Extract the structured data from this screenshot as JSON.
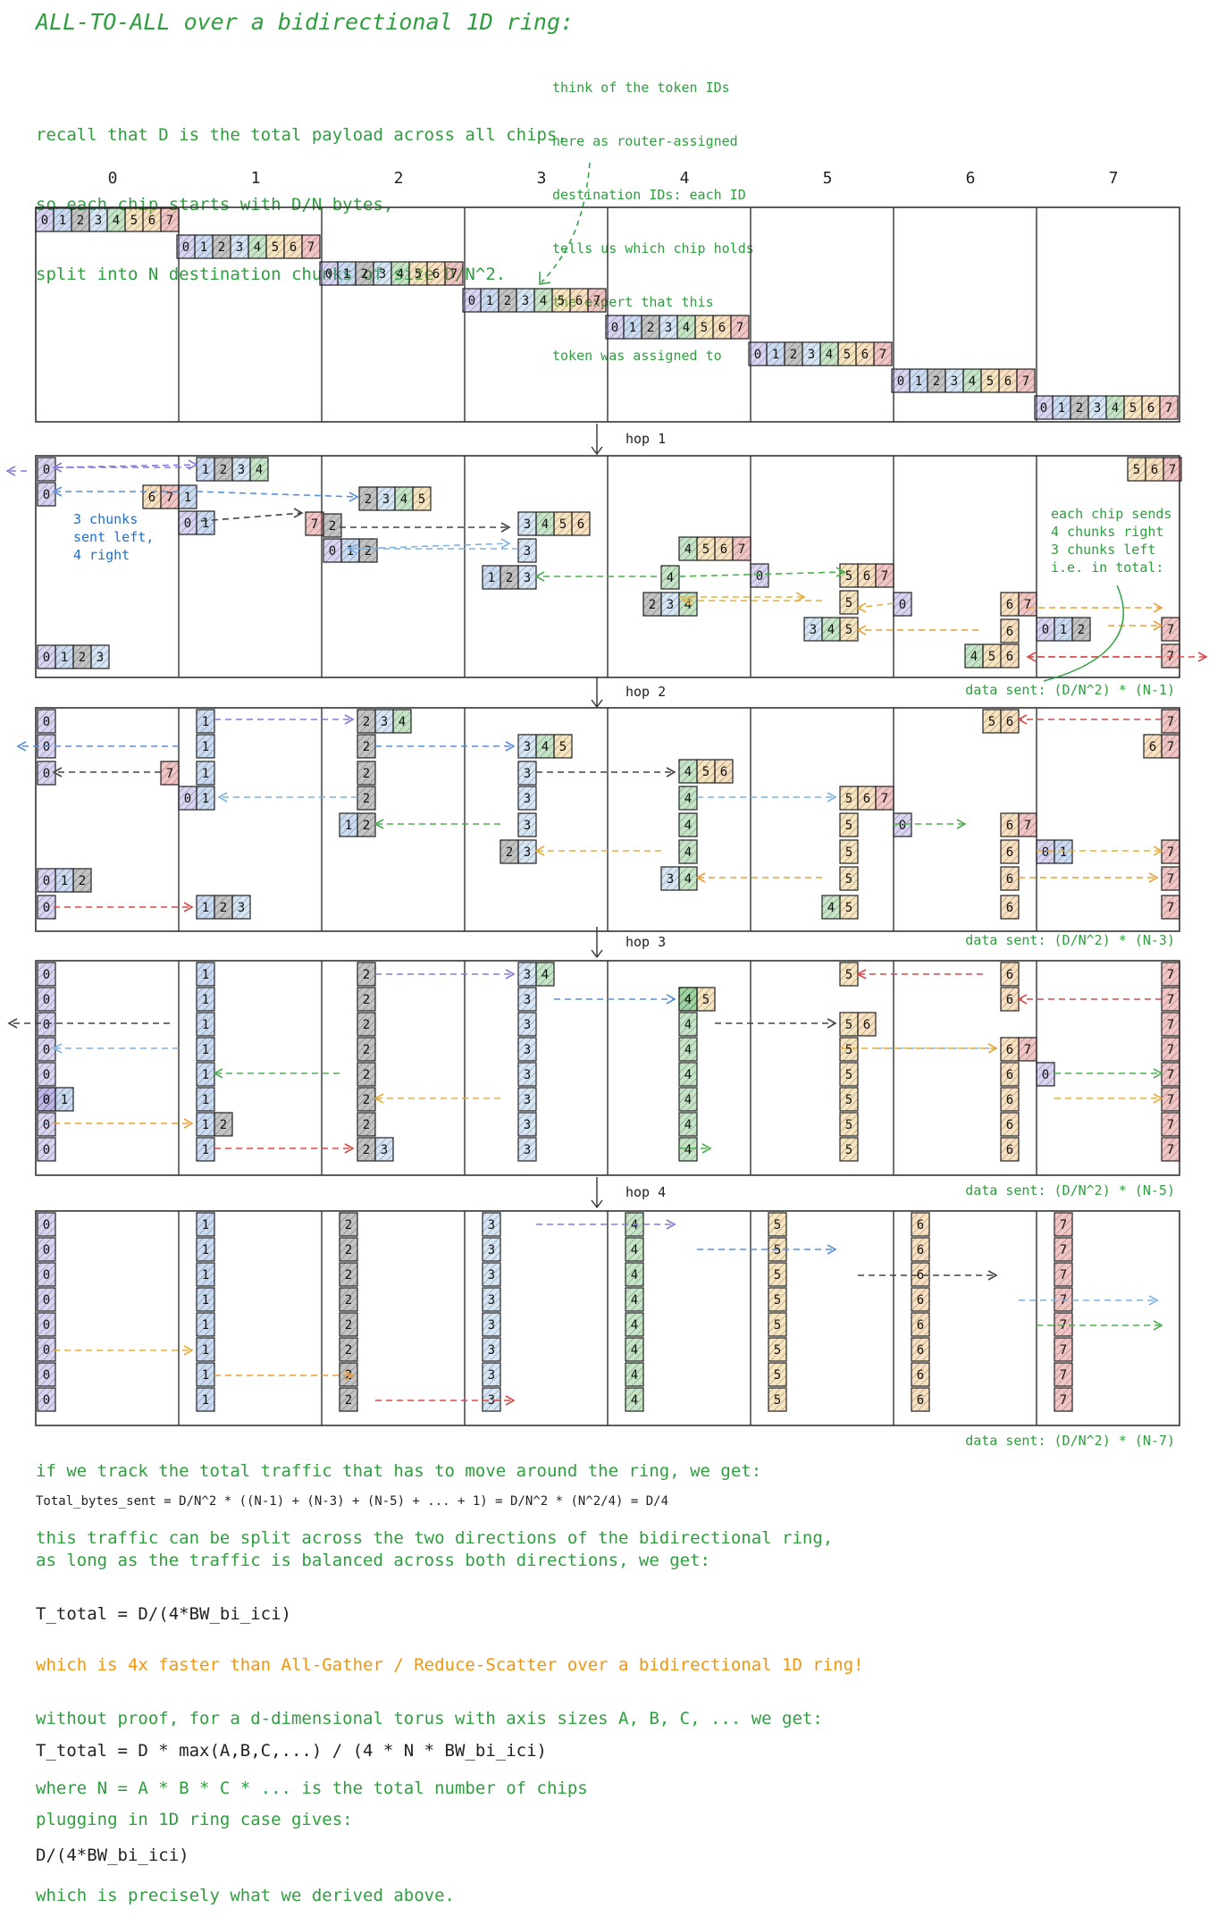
{
  "title": "ALL-TO-ALL over a bidirectional 1D ring:",
  "recall_lines": [
    "recall that D is the total payload across all chips,",
    "so each chip starts with D/N bytes,",
    "split into N destination chunks of size D/N^2."
  ],
  "note_lines": [
    "think of the token IDs",
    "here as router-assigned",
    "destination IDs: each ID",
    "tells us which chip holds",
    "the expert that this",
    "token was assigned to"
  ],
  "chip_labels": [
    "0",
    "1",
    "2",
    "3",
    "4",
    "5",
    "6",
    "7"
  ],
  "colors": {
    "accent_green": "#2e9e3e",
    "dark_text": "#222222",
    "orange_text": "#f0960c",
    "blue_annotation": "#1f6fc9",
    "chip_colors": [
      "#8a78d4",
      "#5a8ed8",
      "#444444",
      "#7fb2e0",
      "#4fae52",
      "#e6ad3c",
      "#e8a03c",
      "#d84a4a"
    ]
  },
  "hop_labels": [
    "hop 1",
    "hop 2",
    "hop 3",
    "hop 4"
  ],
  "left_annotation_lines": [
    "3 chunks",
    "sent left,",
    "4 right"
  ],
  "right_annotation_lines": [
    "each chip sends",
    "4 chunks right",
    "3 chunks left",
    "i.e. in total:"
  ],
  "data_sent_labels": [
    "data sent: (D/N^2) * (N-1)",
    "data sent: (D/N^2) * (N-3)",
    "data sent: (D/N^2) * (N-5)",
    "data sent: (D/N^2) * (N-7)"
  ],
  "bottom_lines": [
    {
      "text": "if we track the total traffic that has to move around the ring, we get:",
      "color": "#2e9e3e"
    },
    {
      "text": "Total_bytes_sent = D/N^2 * ((N-1) + (N-3) + (N-5) + ... + 1) = D/N^2 * (N^2/4) = D/4",
      "color": "#222222"
    },
    {
      "text": "this traffic can be split across the two directions of the bidirectional ring,",
      "color": "#2e9e3e"
    },
    {
      "text": "as long as the traffic is balanced across both directions, we get:",
      "color": "#2e9e3e"
    },
    {
      "text": "T_total = D/(4*BW_bi_ici)",
      "color": "#222222"
    },
    {
      "text": "which is 4x faster than All-Gather / Reduce-Scatter over a bidirectional 1D ring!",
      "color": "#f0960c"
    },
    {
      "text": "without proof, for a d-dimensional torus with axis sizes A, B, C, ... we get:",
      "color": "#2e9e3e"
    },
    {
      "text": "T_total = D * max(A,B,C,...) / (4 * N * BW_bi_ici)",
      "color": "#222222"
    },
    {
      "text": "where N = A * B * C * ... is the total number of chips",
      "color": "#2e9e3e"
    },
    {
      "text": "plugging in 1D ring case gives:",
      "color": "#2e9e3e"
    },
    {
      "text": "D/(4*BW_bi_ici)",
      "color": "#222222"
    },
    {
      "text": "which is precisely what we derived above.",
      "color": "#2e9e3e"
    }
  ]
}
